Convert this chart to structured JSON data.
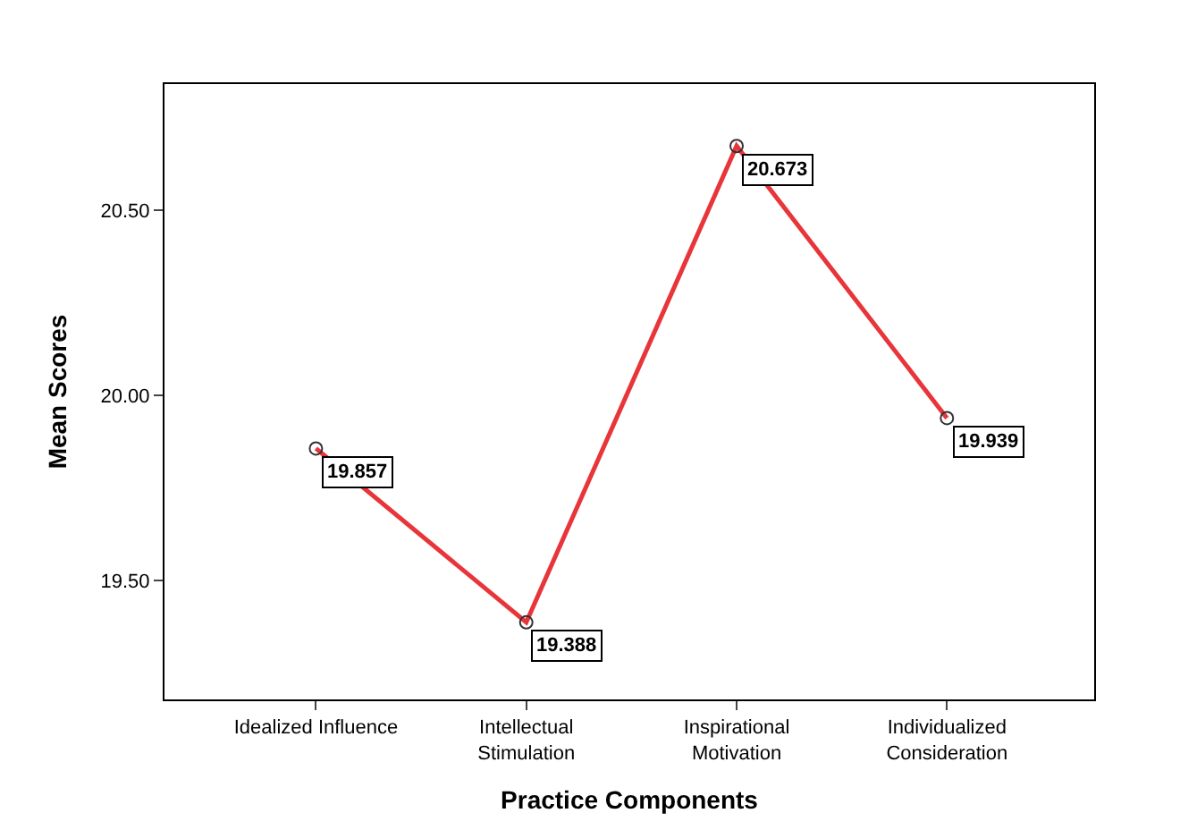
{
  "chart_data": {
    "type": "line",
    "xlabel": "Practice Components",
    "ylabel": "Mean Scores",
    "categories": [
      "Idealized Influence",
      "Intellectual\nStimulation",
      "Inspirational\nMotivation",
      "Individualized\nConsideration"
    ],
    "series": [
      {
        "color": "#e8353a",
        "values": [
          19.857,
          19.388,
          20.673,
          19.939
        ]
      }
    ],
    "ylim": [
      19.18,
      20.84
    ],
    "yticks": [
      {
        "value": 19.5,
        "label": "19.50"
      },
      {
        "value": 20.0,
        "label": "20.00"
      },
      {
        "value": 20.5,
        "label": "20.50"
      }
    ],
    "data_labels": true,
    "marker": "circle",
    "line_style": "solid"
  }
}
